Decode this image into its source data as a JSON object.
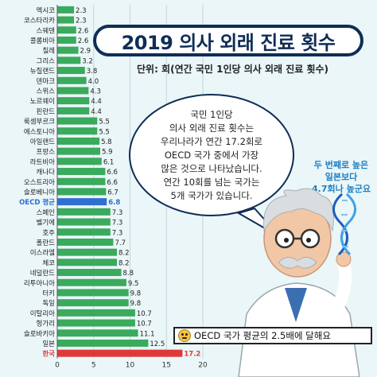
{
  "title": "2019 의사 외래 진료 횟수",
  "unit_label": "단위: 회(연간 국민 1인당 의사 외래 진료 횟수)",
  "bubble_lines": [
    "국민 1인당",
    "의사 외래 진료 횟수는",
    "우리나라가 연간 17.2회로",
    "OECD 국가 중에서 가장",
    "많은 것으로 나타났습니다.",
    "연간 10회를 넘는 국가는",
    "5개 국가가 있습니다."
  ],
  "side_note_lines": [
    "두 번째로 높은",
    "일본보다",
    "4.7회나 높군요"
  ],
  "footer_text": "OECD 국가 평균의 2.5배에 달해요",
  "colors": {
    "bar": "#3aaa5c",
    "oecd_bar": "#2f6fd0",
    "korea_bar": "#e03838",
    "grid": "#c8d6d9",
    "background": "#eaf6f8"
  },
  "chart_data": {
    "type": "bar",
    "orientation": "horizontal",
    "title": "2019 의사 외래 진료 횟수",
    "xlabel": "",
    "ylabel": "",
    "xlim": [
      0,
      20
    ],
    "xticks": [
      0,
      5,
      10,
      15,
      20
    ],
    "grid": true,
    "categories": [
      "멕시코",
      "코스타리카",
      "스웨덴",
      "콜롬비아",
      "칠레",
      "그리스",
      "뉴질랜드",
      "덴마크",
      "스위스",
      "노르웨이",
      "핀란드",
      "룩셈부르크",
      "에스토니아",
      "아일랜드",
      "프랑스",
      "라트비아",
      "캐나다",
      "오스트리아",
      "슬로베니아",
      "OECD 평균",
      "스페인",
      "벨기에",
      "호주",
      "폴란드",
      "이스라엘",
      "체코",
      "네덜란드",
      "리투아니아",
      "터키",
      "독일",
      "이탈리아",
      "헝가리",
      "슬로바키아",
      "일본",
      "한국"
    ],
    "values": [
      2.3,
      2.3,
      2.6,
      2.6,
      2.9,
      3.2,
      3.8,
      4.0,
      4.3,
      4.4,
      4.4,
      5.5,
      5.5,
      5.8,
      5.9,
      6.1,
      6.6,
      6.6,
      6.7,
      6.8,
      7.3,
      7.3,
      7.3,
      7.7,
      8.2,
      8.2,
      8.8,
      9.5,
      9.8,
      9.8,
      10.7,
      10.7,
      11.1,
      12.5,
      17.2
    ],
    "value_labels": [
      "2.3",
      "2.3",
      "2.6",
      "2.6",
      "2.9",
      "3.2",
      "3.8",
      "4.0",
      "4.3",
      "4.4",
      "4.4",
      "5.5",
      "5.5",
      "5.8",
      "5.9",
      "6.1",
      "6.6",
      "6.6",
      "6.7",
      "6.8",
      "7.3",
      "7.3",
      "7.3",
      "7.7",
      "8.2",
      "8.2",
      "8.8",
      "9.5",
      "9.8",
      "9.8",
      "10.7",
      "10.7",
      "11.1",
      "12.5",
      "17.2"
    ],
    "highlight": {
      "OECD 평균": "oecd_bar",
      "한국": "korea_bar"
    }
  }
}
